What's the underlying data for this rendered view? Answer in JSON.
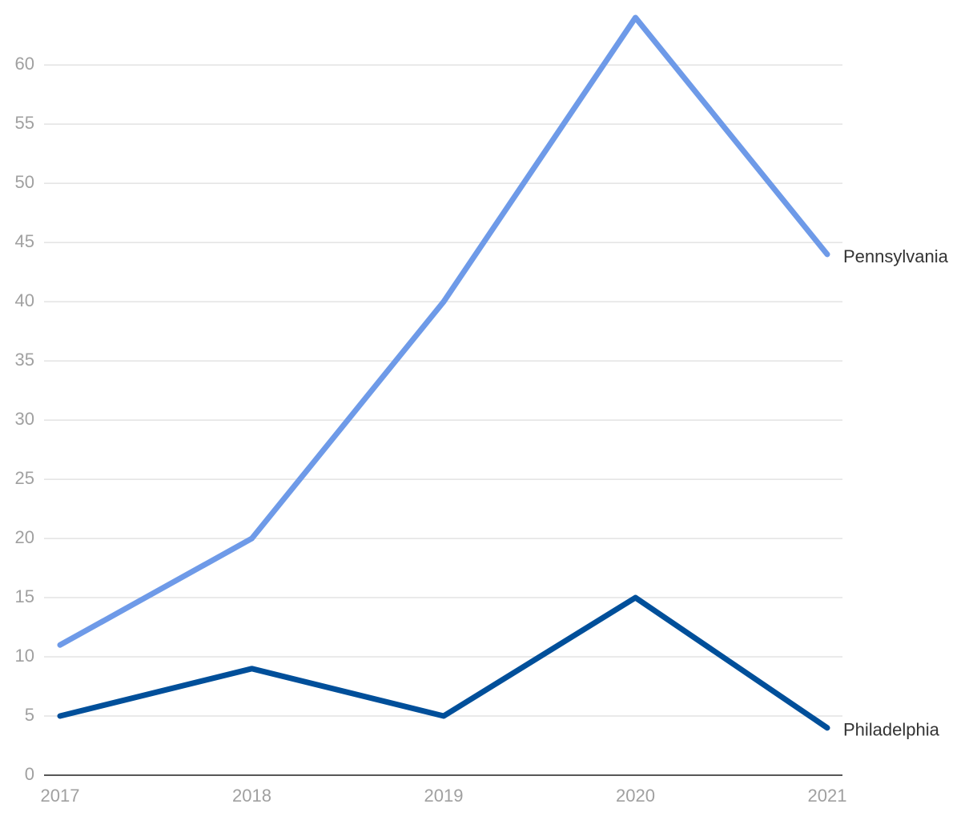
{
  "chart_data": {
    "type": "line",
    "x": [
      2017,
      2018,
      2019,
      2020,
      2021
    ],
    "xlim": [
      2017,
      2021
    ],
    "xticks": [
      2017,
      2018,
      2019,
      2020,
      2021
    ],
    "ylim": [
      0,
      64
    ],
    "yticks": [
      0,
      5,
      10,
      15,
      20,
      25,
      30,
      35,
      40,
      45,
      50,
      55,
      60
    ],
    "grid": true,
    "series": [
      {
        "name": "Pennsylvania",
        "color": "#6e9ae8",
        "values": [
          11,
          20,
          40,
          64,
          44
        ]
      },
      {
        "name": "Philadelphia",
        "color": "#004f9a",
        "values": [
          5,
          9,
          5,
          15,
          4
        ]
      }
    ]
  }
}
